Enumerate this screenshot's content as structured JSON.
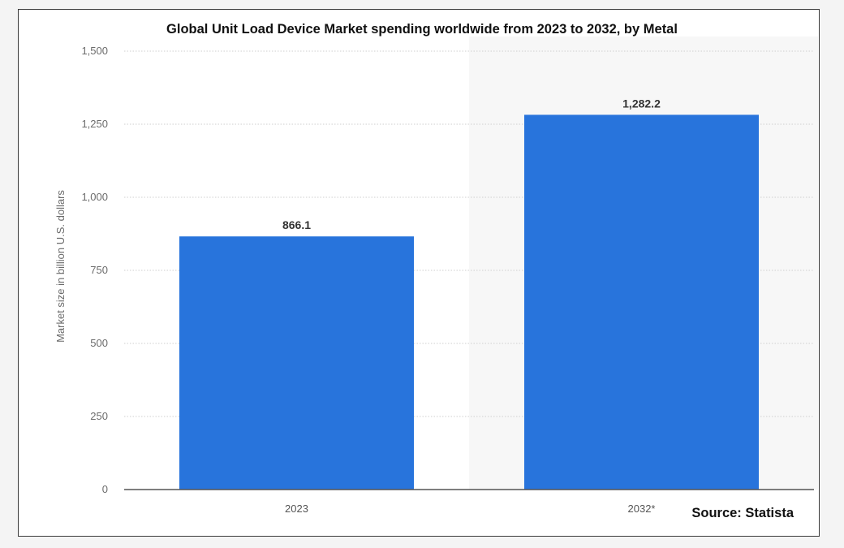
{
  "chart_data": {
    "type": "bar",
    "title": "Global Unit Load Device Market spending worldwide from 2023 to 2032, by Metal",
    "ylabel": "Market size in billion U.S. dollars",
    "xlabel": "",
    "categories": [
      "2023",
      "2032*"
    ],
    "values": [
      866.1,
      1282.2
    ],
    "value_labels": [
      "866.1",
      "1,282.2"
    ],
    "ylim": [
      0,
      1500
    ],
    "yticks": [
      0,
      250,
      500,
      750,
      1000,
      1250,
      1500
    ],
    "ytick_labels": [
      "0",
      "250",
      "500",
      "750",
      "1,000",
      "1,250",
      "1,500"
    ],
    "grid": true,
    "forecast_shading_from_category": "2032*",
    "bar_color": "#2874dc",
    "source": "Source: Statista"
  }
}
